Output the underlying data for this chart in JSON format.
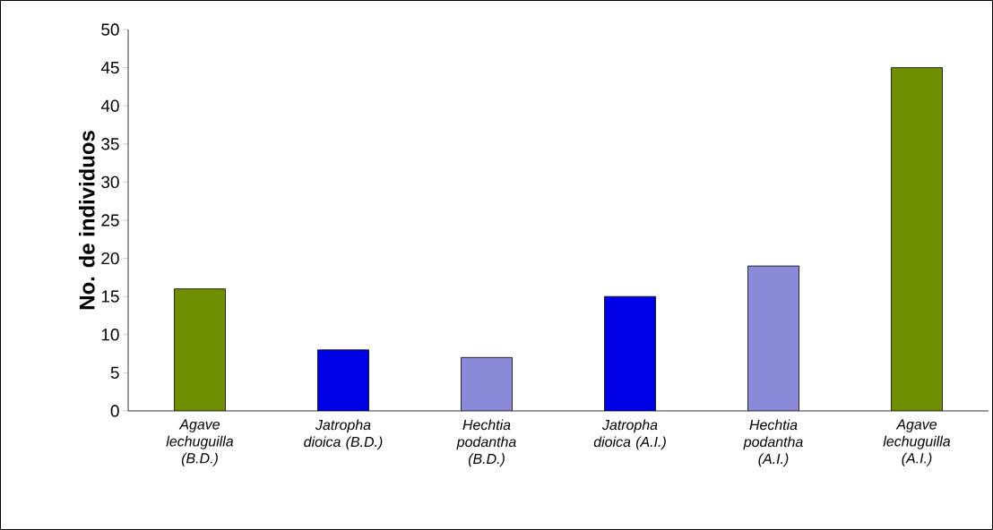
{
  "chart_data": {
    "type": "bar",
    "ylabel": "No. de individuos",
    "categories": [
      "Agave lechuguilla (B.D.)",
      "Jatropha dioica (B.D.)",
      "Hechtia podantha (B.D.)",
      "Jatropha dioica (A.I.)",
      "Hechtia podantha (A.I.)",
      "Agave lechuguilla (A.I.)"
    ],
    "values": [
      16,
      8,
      7,
      15,
      19,
      45
    ],
    "colors": [
      "#6f8f00",
      "#0000e6",
      "#8a8ad8",
      "#0000e6",
      "#8a8ad8",
      "#6f8f00"
    ],
    "ylim": [
      0,
      50
    ],
    "yticks": [
      0,
      5,
      10,
      15,
      20,
      25,
      30,
      35,
      40,
      45,
      50
    ],
    "grid": false
  }
}
